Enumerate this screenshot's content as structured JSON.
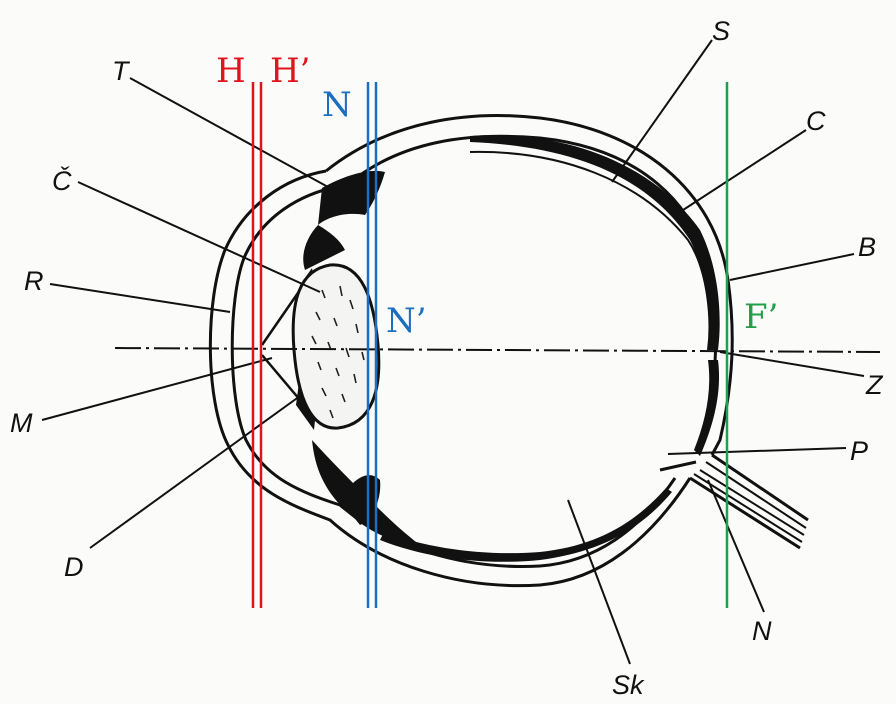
{
  "colors": {
    "principal_planes": "#e0141c",
    "nodal_planes": "#1b6fc0",
    "focal_plane": "#1fa04a",
    "ink": "#111111"
  },
  "planes": {
    "H": "H",
    "H_prime": "H’",
    "N": "N",
    "N_prime": "N’",
    "F_prime": "F’"
  },
  "labels": {
    "T": "T",
    "C_caron": "Č",
    "R": "R",
    "M": "M",
    "D": "D",
    "S": "S",
    "C": "C",
    "B": "B",
    "Z": "Z",
    "P": "P",
    "N": "N",
    "Sk": "Sk"
  }
}
